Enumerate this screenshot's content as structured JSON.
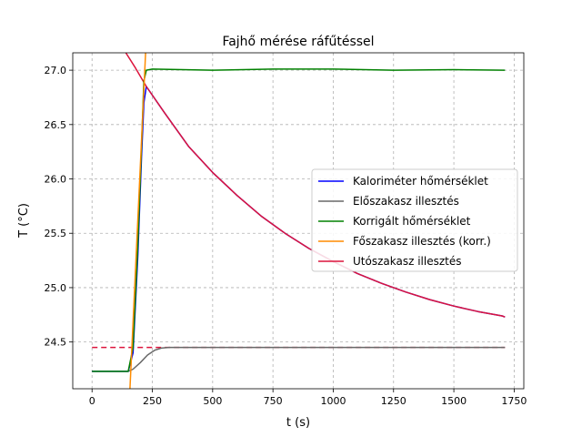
{
  "chart_data": {
    "type": "line",
    "title": "Fajhő mérése ráfűtéssel",
    "xlabel": "t (s)",
    "ylabel": "T (°C)",
    "xlim": [
      -80,
      1790
    ],
    "ylim": [
      24.07,
      27.16
    ],
    "xticks": [
      0,
      250,
      500,
      750,
      1000,
      1250,
      1500,
      1750
    ],
    "yticks": [
      24.5,
      25.0,
      25.5,
      26.0,
      26.5,
      27.0
    ],
    "xtick_labels": [
      "0",
      "250",
      "500",
      "750",
      "1000",
      "1250",
      "1500",
      "1750"
    ],
    "ytick_labels": [
      "24.5",
      "25.0",
      "25.5",
      "26.0",
      "26.5",
      "27.0"
    ],
    "grid": true,
    "legend_position": "center-right",
    "series": [
      {
        "name": "Kaloriméter hőmérséklet",
        "color": "#0000ff",
        "points": [
          [
            0,
            24.23
          ],
          [
            150,
            24.23
          ],
          [
            170,
            24.4
          ],
          [
            190,
            25.3
          ],
          [
            205,
            26.2
          ],
          [
            215,
            26.7
          ],
          [
            225,
            26.85
          ],
          [
            300,
            26.61
          ],
          [
            400,
            26.3
          ],
          [
            500,
            26.06
          ],
          [
            600,
            25.85
          ],
          [
            700,
            25.66
          ],
          [
            800,
            25.5
          ],
          [
            900,
            25.36
          ],
          [
            1000,
            25.24
          ],
          [
            1100,
            25.13
          ],
          [
            1200,
            25.04
          ],
          [
            1300,
            24.96
          ],
          [
            1400,
            24.89
          ],
          [
            1500,
            24.83
          ],
          [
            1600,
            24.78
          ],
          [
            1700,
            24.74
          ],
          [
            1712,
            24.73
          ]
        ]
      },
      {
        "name": "Előszakasz illesztés",
        "color": "#696969",
        "points": [
          [
            0,
            24.23
          ],
          [
            150,
            24.23
          ],
          [
            170,
            24.25
          ],
          [
            200,
            24.31
          ],
          [
            230,
            24.38
          ],
          [
            260,
            24.425
          ],
          [
            290,
            24.445
          ],
          [
            320,
            24.45
          ],
          [
            1712,
            24.45
          ]
        ]
      },
      {
        "name": "Korrigált hőmérséklet",
        "color": "#008000",
        "points": [
          [
            0,
            24.23
          ],
          [
            150,
            24.23
          ],
          [
            170,
            24.45
          ],
          [
            190,
            25.4
          ],
          [
            205,
            26.3
          ],
          [
            215,
            26.9
          ],
          [
            225,
            27.0
          ],
          [
            250,
            27.01
          ],
          [
            500,
            27.0
          ],
          [
            750,
            27.01
          ],
          [
            1000,
            27.01
          ],
          [
            1250,
            27.0
          ],
          [
            1500,
            27.005
          ],
          [
            1712,
            27.0
          ]
        ]
      },
      {
        "name": "Főszakasz illesztés (korr.)",
        "color": "#ff8c00",
        "points": [
          [
            157,
            24.07
          ],
          [
            222,
            27.16
          ]
        ]
      },
      {
        "name": "Utószakasz illesztés",
        "color": "#dc143c",
        "points": [
          [
            140,
            27.16
          ],
          [
            180,
            27.02
          ],
          [
            225,
            26.85
          ],
          [
            300,
            26.61
          ],
          [
            400,
            26.3
          ],
          [
            500,
            26.06
          ],
          [
            600,
            25.85
          ],
          [
            700,
            25.66
          ],
          [
            800,
            25.5
          ],
          [
            900,
            25.36
          ],
          [
            1000,
            25.24
          ],
          [
            1100,
            25.13
          ],
          [
            1200,
            25.04
          ],
          [
            1300,
            24.96
          ],
          [
            1400,
            24.89
          ],
          [
            1500,
            24.83
          ],
          [
            1600,
            24.78
          ],
          [
            1700,
            24.74
          ],
          [
            1712,
            24.73
          ]
        ]
      }
    ],
    "reference_line": {
      "y": 24.45,
      "x_range": [
        0,
        1712
      ],
      "color": "#dc143c",
      "style": "dashed"
    }
  }
}
